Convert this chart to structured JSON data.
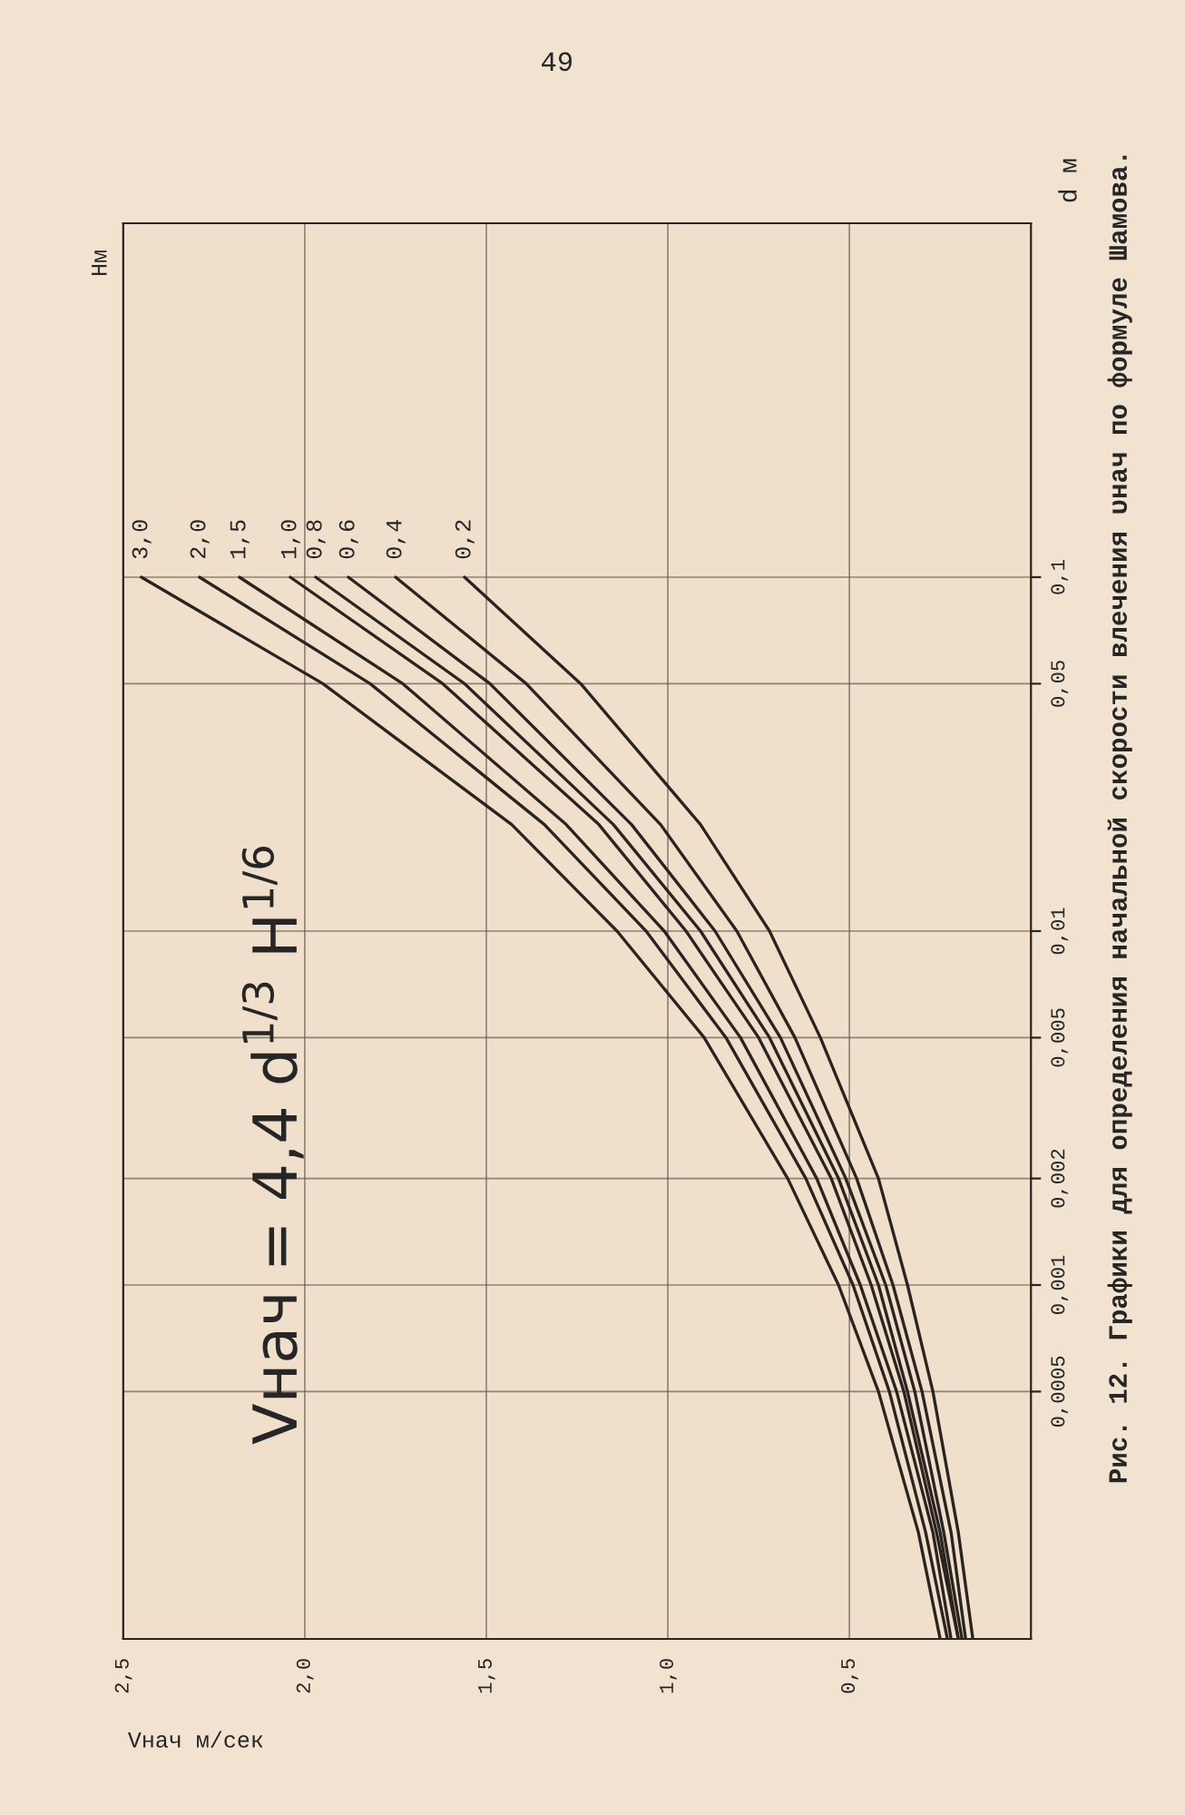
{
  "chart_data": {
    "type": "line",
    "title": "Рис. 12. Графики для определения начальной скорости влечения υнач по формуле Шамова.",
    "xlabel": "Vнач м/сек",
    "ylabel": "d м",
    "annotations": [
      "49",
      "Vнач = 4,4 d$^{1/3}$ H$^{1/6}$",
      "Hм"
    ],
    "xlim": [
      2.5,
      0
    ],
    "xticks": [
      {
        "value": 2.5,
        "label": "2,5"
      },
      {
        "value": 2.0,
        "label": "2,0"
      },
      {
        "value": 1.5,
        "label": "1,5"
      },
      {
        "value": 1.0,
        "label": "1,0"
      },
      {
        "value": 0.5,
        "label": "0,5"
      }
    ],
    "ylim": [
      0.0001,
      1
    ],
    "log": "y",
    "yticks": [
      {
        "value": 0.0005,
        "label": "0,0005"
      },
      {
        "value": 0.001,
        "label": "0,001"
      },
      {
        "value": 0.002,
        "label": "0,002"
      },
      {
        "value": 0.005,
        "label": "0,005"
      },
      {
        "value": 0.01,
        "label": "0,01"
      },
      {
        "value": 0.05,
        "label": "0,05"
      },
      {
        "value": 0.1,
        "label": "0,1"
      }
    ],
    "grid": true,
    "legend": false,
    "marker": "none",
    "line_style": "solid",
    "series": [
      {
        "name": "3,0",
        "color": "#2a2420",
        "x": [
          0.25,
          0.31,
          0.42,
          0.53,
          0.67,
          0.9,
          1.14,
          1.43,
          1.95,
          2.45
        ],
        "values": [
          0.0001,
          0.0002,
          0.0005,
          0.001,
          0.002,
          0.005,
          0.01,
          0.02,
          0.05,
          0.1
        ]
      },
      {
        "name": "2,0",
        "color": "#2a2420",
        "x": [
          0.23,
          0.29,
          0.39,
          0.49,
          0.62,
          0.84,
          1.06,
          1.34,
          1.82,
          2.29
        ],
        "values": [
          0.0001,
          0.0002,
          0.0005,
          0.001,
          0.002,
          0.005,
          0.01,
          0.02,
          0.05,
          0.1
        ]
      },
      {
        "name": "1,5",
        "color": "#2a2420",
        "x": [
          0.22,
          0.27,
          0.37,
          0.47,
          0.59,
          0.8,
          1.01,
          1.28,
          1.73,
          2.18
        ],
        "values": [
          0.0001,
          0.0002,
          0.0005,
          0.001,
          0.002,
          0.005,
          0.01,
          0.02,
          0.05,
          0.1
        ]
      },
      {
        "name": "1,0",
        "color": "#2a2420",
        "x": [
          0.2,
          0.26,
          0.35,
          0.44,
          0.55,
          0.75,
          0.95,
          1.19,
          1.62,
          2.04
        ],
        "values": [
          0.0001,
          0.0002,
          0.0005,
          0.001,
          0.002,
          0.005,
          0.01,
          0.02,
          0.05,
          0.1
        ]
      },
      {
        "name": "0,8",
        "color": "#2a2420",
        "x": [
          0.2,
          0.25,
          0.34,
          0.42,
          0.53,
          0.72,
          0.91,
          1.15,
          1.56,
          1.97
        ],
        "values": [
          0.0001,
          0.0002,
          0.0005,
          0.001,
          0.002,
          0.005,
          0.01,
          0.02,
          0.05,
          0.1
        ]
      },
      {
        "name": "0,6",
        "color": "#2a2420",
        "x": [
          0.19,
          0.24,
          0.32,
          0.4,
          0.51,
          0.69,
          0.87,
          1.1,
          1.49,
          1.88
        ],
        "values": [
          0.0001,
          0.0002,
          0.0005,
          0.001,
          0.002,
          0.005,
          0.01,
          0.02,
          0.05,
          0.1
        ]
      },
      {
        "name": "0,4",
        "color": "#2a2420",
        "x": [
          0.18,
          0.22,
          0.3,
          0.38,
          0.48,
          0.65,
          0.81,
          1.02,
          1.39,
          1.75
        ],
        "values": [
          0.0001,
          0.0002,
          0.0005,
          0.001,
          0.002,
          0.005,
          0.01,
          0.02,
          0.05,
          0.1
        ]
      },
      {
        "name": "0,2",
        "color": "#2a2420",
        "x": [
          0.16,
          0.2,
          0.27,
          0.34,
          0.42,
          0.58,
          0.72,
          0.91,
          1.24,
          1.56
        ],
        "values": [
          0.0001,
          0.0002,
          0.0005,
          0.001,
          0.002,
          0.005,
          0.01,
          0.02,
          0.05,
          0.1
        ]
      }
    ]
  }
}
